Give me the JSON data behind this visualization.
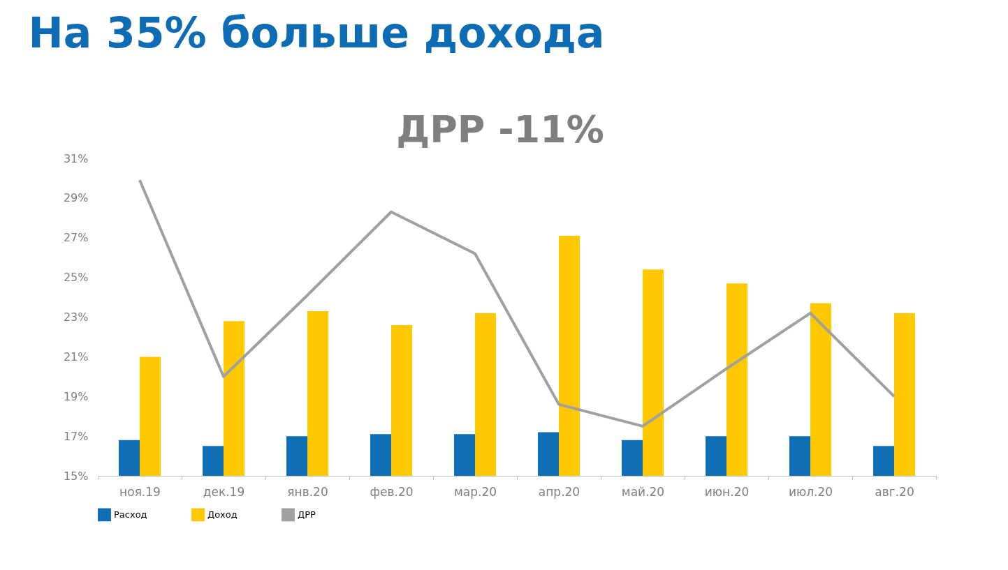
{
  "chart_data": {
    "type": "bar",
    "title": "На 35% больше дохода",
    "subtitle": "ДРР -11%",
    "categories": [
      "ноя.19",
      "дек.19",
      "янв.20",
      "фев.20",
      "мар.20",
      "апр.20",
      "май.20",
      "июн.20",
      "июл.20",
      "авг.20"
    ],
    "series": [
      {
        "name": "Расход",
        "color": "#0f6eb4",
        "values": [
          16.8,
          16.5,
          17.0,
          17.1,
          17.1,
          17.2,
          16.8,
          17.0,
          17.0,
          16.5
        ]
      },
      {
        "name": "Доход",
        "color": "#ffc800",
        "values": [
          21.0,
          22.8,
          23.3,
          22.6,
          23.2,
          27.1,
          25.4,
          24.7,
          23.7,
          23.2
        ]
      },
      {
        "name": "ДРР",
        "type": "line",
        "color": "#a0a0a0",
        "values": [
          29.9,
          20.0,
          24.1,
          28.3,
          26.2,
          18.6,
          17.5,
          20.4,
          23.2,
          19.0
        ]
      }
    ],
    "ylim": [
      15,
      31
    ],
    "yticks": [
      {
        "value": 15,
        "label": "15%"
      },
      {
        "value": 17,
        "label": "17%"
      },
      {
        "value": 19,
        "label": "19%"
      },
      {
        "value": 21,
        "label": "21%"
      },
      {
        "value": 23,
        "label": "23%"
      },
      {
        "value": 25,
        "label": "25%"
      },
      {
        "value": 27,
        "label": "27%"
      },
      {
        "value": 29,
        "label": "29%"
      },
      {
        "value": 31,
        "label": "31%"
      }
    ],
    "grid": false,
    "legend": "bottom"
  }
}
